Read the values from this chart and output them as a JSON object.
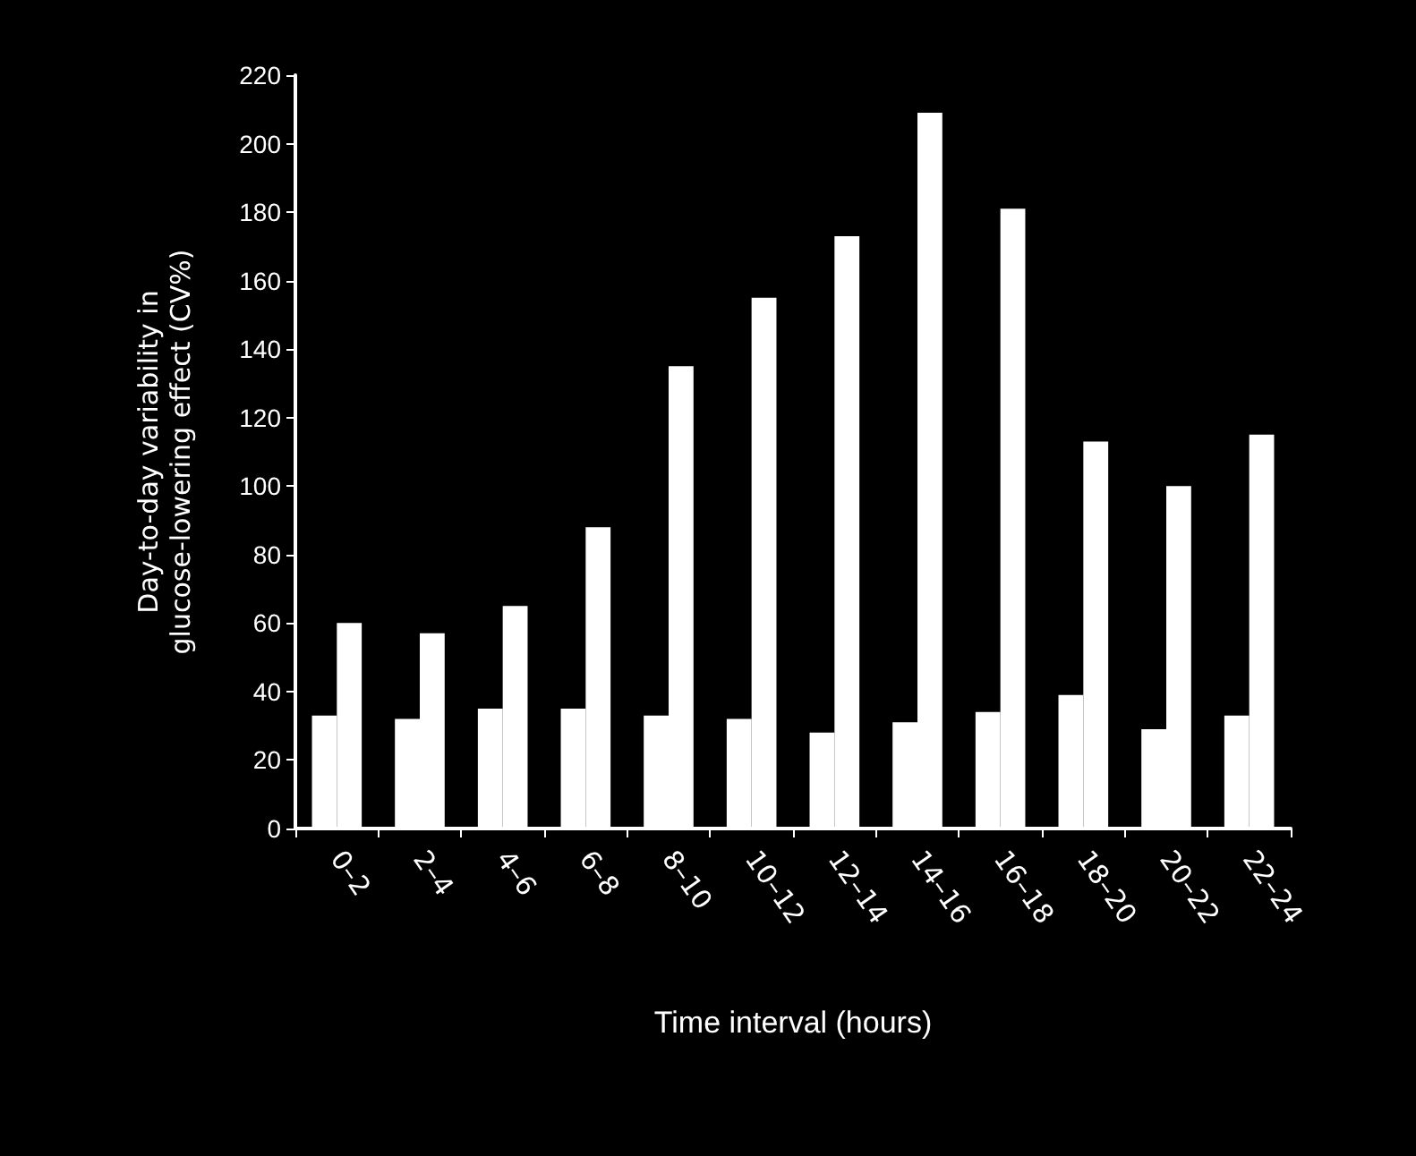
{
  "chart_data": {
    "type": "bar",
    "xlabel": "Time interval (hours)",
    "ylabel": "Day-to-day variability in\nglucose-lowering effect (CV%)",
    "categories": [
      "0–2",
      "2–4",
      "4–6",
      "6–8",
      "8–10",
      "10–12",
      "12–14",
      "14–16",
      "16–18",
      "18–20",
      "20–22",
      "22–24"
    ],
    "series": [
      {
        "color": "#ffffff",
        "values": [
          33,
          32,
          35,
          35,
          33,
          32,
          28,
          31,
          34,
          39,
          29,
          33
        ]
      },
      {
        "color": "#ffffff",
        "values": [
          60,
          57,
          65,
          88,
          135,
          155,
          173,
          209,
          181,
          113,
          100,
          115
        ]
      }
    ],
    "ylim": [
      0,
      220
    ],
    "yticks": [
      0,
      20,
      40,
      60,
      80,
      100,
      120,
      140,
      160,
      180,
      200,
      220
    ],
    "grid": false
  }
}
